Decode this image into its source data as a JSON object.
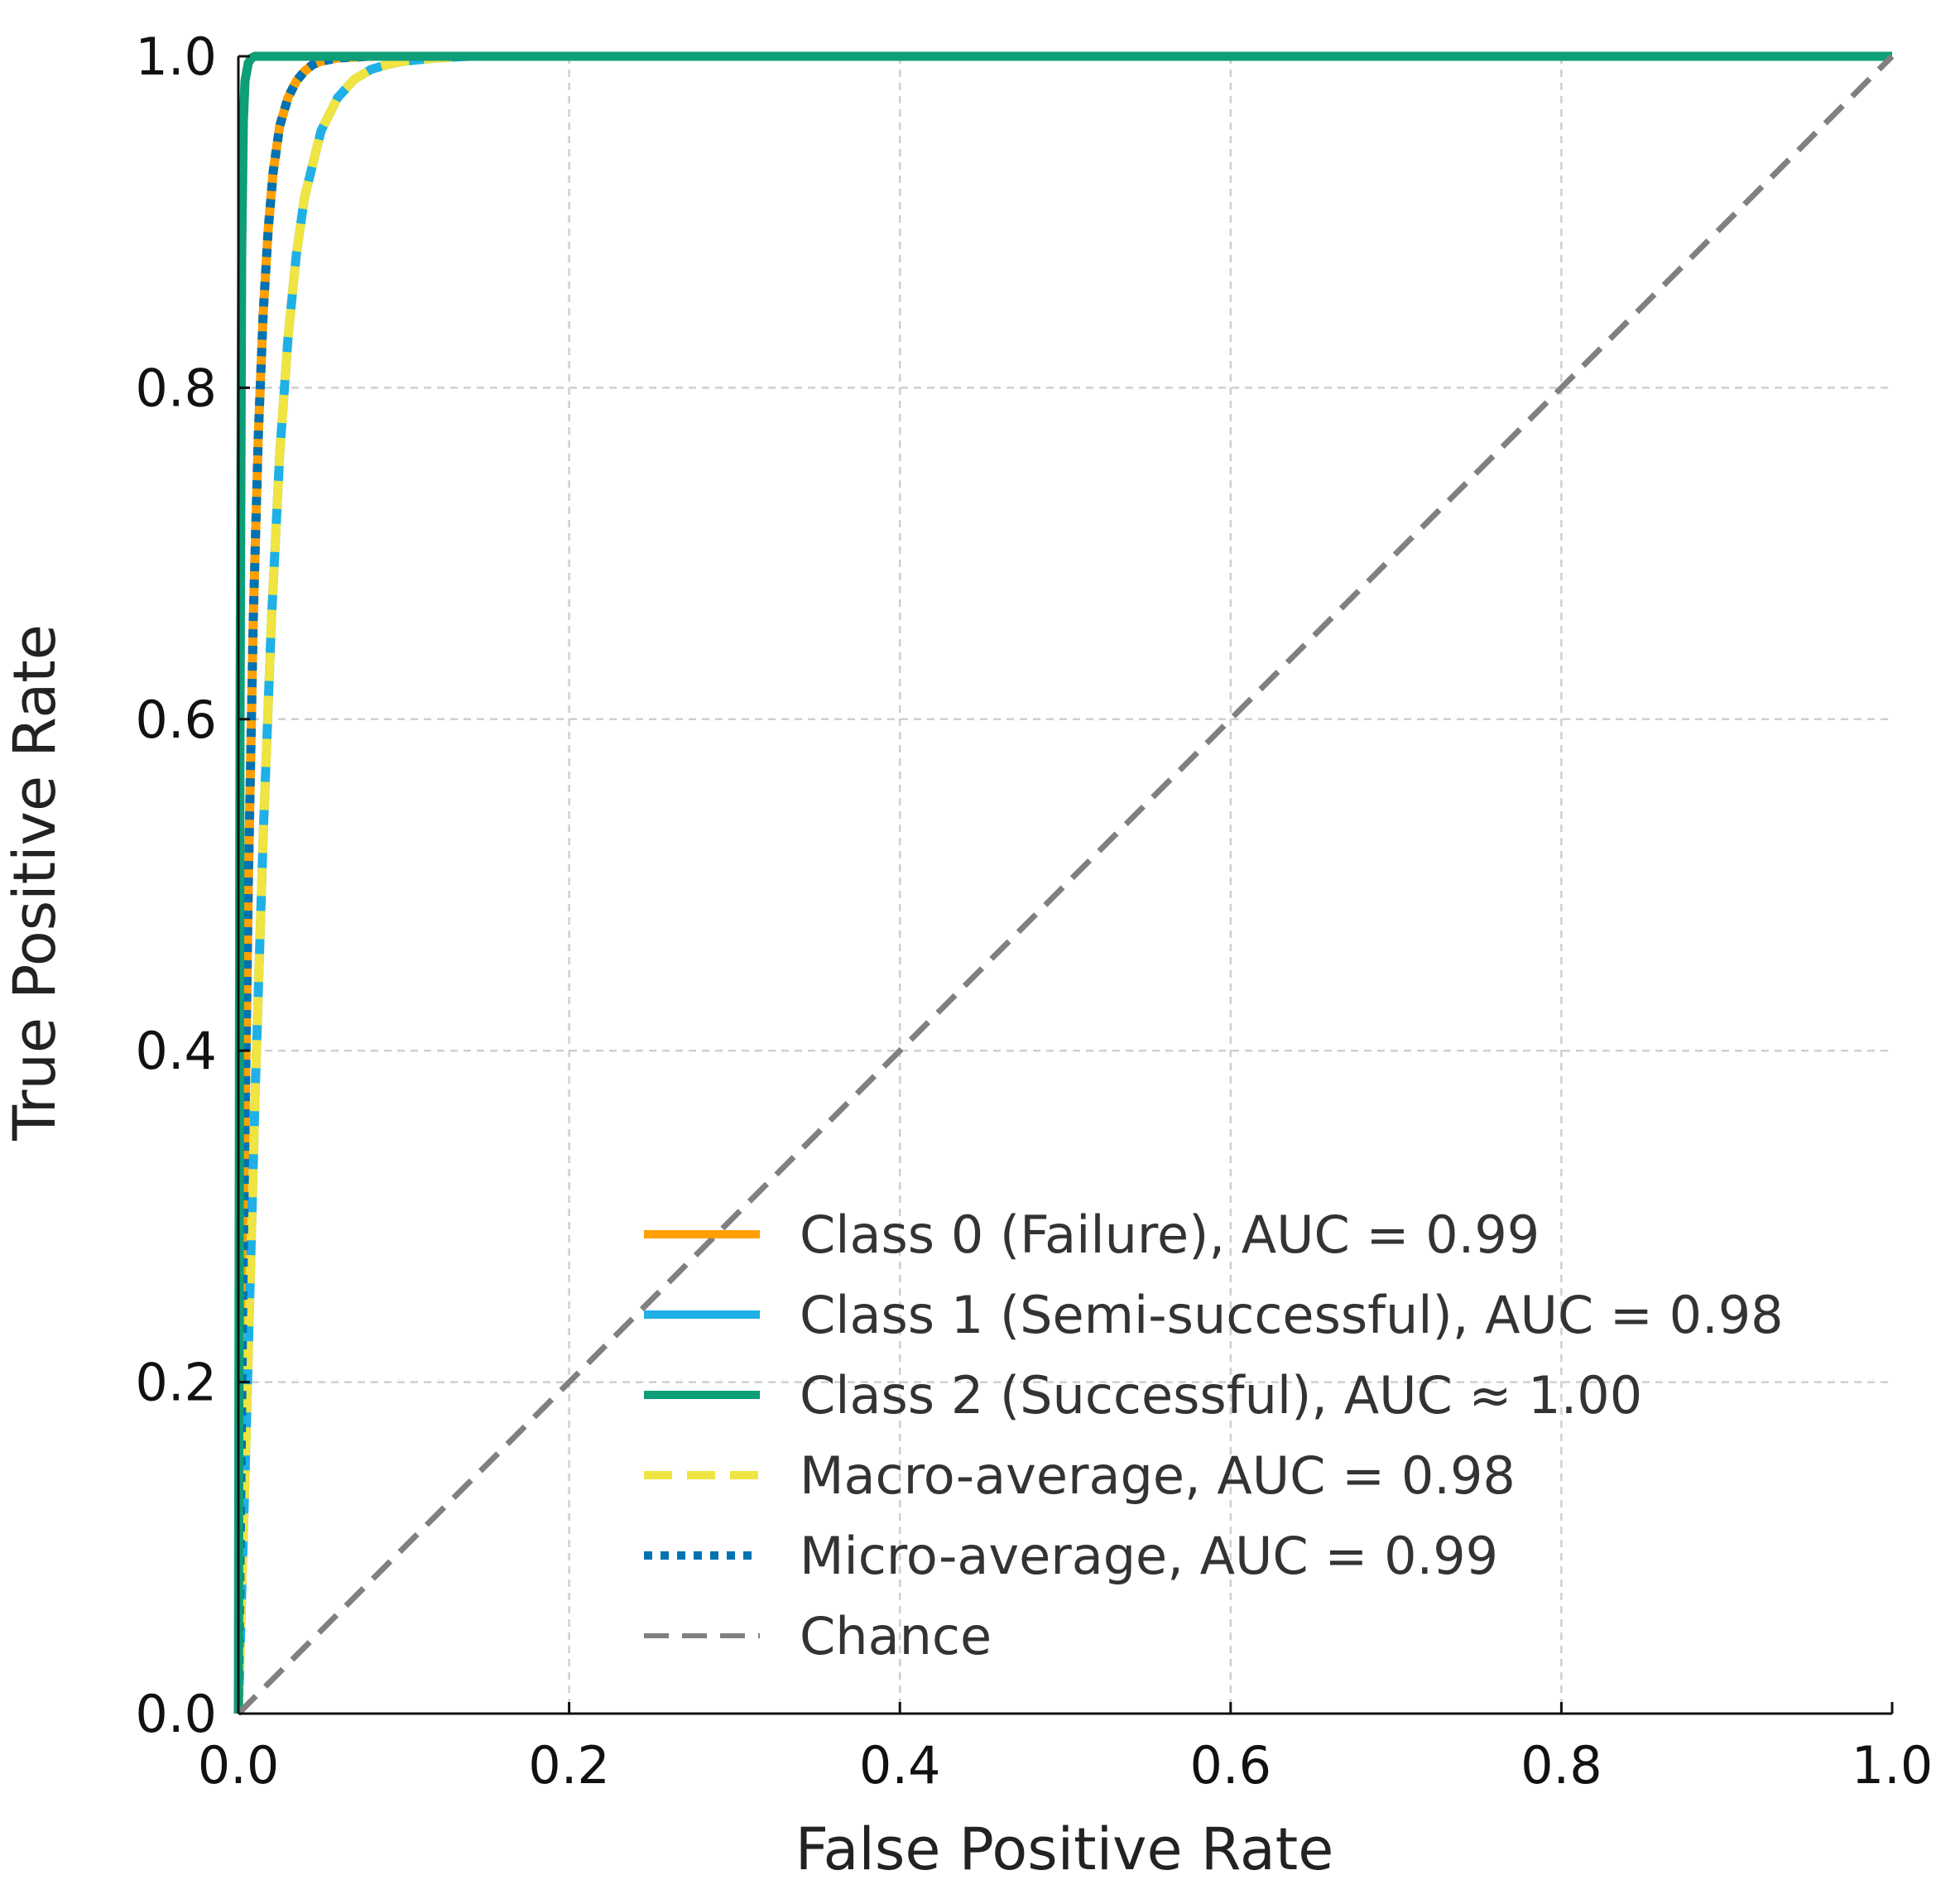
{
  "chart_data": {
    "type": "line",
    "title": "",
    "xlabel": "False Positive Rate",
    "ylabel": "True Positive Rate",
    "xlim": [
      0.0,
      1.0
    ],
    "ylim": [
      0.0,
      1.0
    ],
    "grid": true,
    "x_ticks": [
      "0.0",
      "0.2",
      "0.4",
      "0.6",
      "0.8",
      "1.0"
    ],
    "y_ticks": [
      "0.0",
      "0.2",
      "0.4",
      "0.6",
      "0.8",
      "1.0"
    ],
    "x_tick_values": [
      0.0,
      0.2,
      0.4,
      0.6,
      0.8,
      1.0
    ],
    "y_tick_values": [
      0.0,
      0.2,
      0.4,
      0.6,
      0.8,
      1.0
    ],
    "legend_position": "lower-right",
    "series": [
      {
        "name": "Class 0 (Failure), AUC = 0.99",
        "color": "#FF9F00",
        "style": "solid",
        "x": [
          0.0,
          0.003,
          0.006,
          0.009,
          0.012,
          0.015,
          0.018,
          0.021,
          0.025,
          0.03,
          0.035,
          0.04,
          0.045,
          0.05,
          0.06,
          0.08,
          0.1,
          0.15,
          0.2,
          0.4,
          0.6,
          0.8,
          1.0
        ],
        "y": [
          0.0,
          0.28,
          0.5,
          0.66,
          0.77,
          0.845,
          0.895,
          0.93,
          0.958,
          0.975,
          0.985,
          0.991,
          0.995,
          0.997,
          0.999,
          1.0,
          1.0,
          1.0,
          1.0,
          1.0,
          1.0,
          1.0,
          1.0
        ]
      },
      {
        "name": "Class 1 (Semi-successful), AUC = 0.98",
        "color": "#1EB0E6",
        "style": "solid",
        "x": [
          0.0,
          0.005,
          0.01,
          0.015,
          0.02,
          0.025,
          0.03,
          0.035,
          0.04,
          0.05,
          0.06,
          0.07,
          0.08,
          0.09,
          0.1,
          0.12,
          0.14,
          0.2,
          0.4,
          0.6,
          0.8,
          1.0
        ],
        "y": [
          0.0,
          0.18,
          0.37,
          0.53,
          0.66,
          0.76,
          0.83,
          0.88,
          0.915,
          0.955,
          0.975,
          0.986,
          0.992,
          0.995,
          0.997,
          0.999,
          1.0,
          1.0,
          1.0,
          1.0,
          1.0,
          1.0
        ]
      },
      {
        "name": "Class 2 (Successful), AUC ≈ 1.00",
        "color": "#0E9E78",
        "style": "solid",
        "x": [
          0.0,
          0.001,
          0.002,
          0.003,
          0.004,
          0.006,
          0.008,
          0.01,
          0.015,
          0.2,
          0.4,
          0.6,
          0.8,
          1.0
        ],
        "y": [
          0.0,
          0.6,
          0.88,
          0.96,
          0.985,
          0.996,
          0.999,
          1.0,
          1.0,
          1.0,
          1.0,
          1.0,
          1.0,
          1.0
        ]
      },
      {
        "name": "Macro-average, AUC = 0.98",
        "color": "#F0E442",
        "style": "dashed",
        "x": [
          0.0,
          0.005,
          0.01,
          0.015,
          0.02,
          0.025,
          0.03,
          0.035,
          0.04,
          0.05,
          0.06,
          0.07,
          0.08,
          0.09,
          0.1,
          0.12,
          0.14,
          0.2,
          0.4,
          0.6,
          0.8,
          1.0
        ],
        "y": [
          0.0,
          0.18,
          0.37,
          0.53,
          0.66,
          0.76,
          0.83,
          0.88,
          0.915,
          0.955,
          0.975,
          0.986,
          0.992,
          0.995,
          0.997,
          0.999,
          1.0,
          1.0,
          1.0,
          1.0,
          1.0,
          1.0
        ]
      },
      {
        "name": "Micro-average, AUC = 0.99",
        "color": "#0072B2",
        "style": "dotted",
        "x": [
          0.0,
          0.003,
          0.006,
          0.009,
          0.012,
          0.015,
          0.018,
          0.021,
          0.025,
          0.03,
          0.035,
          0.04,
          0.045,
          0.05,
          0.06,
          0.08,
          0.1,
          0.15,
          0.2,
          0.4,
          0.6,
          0.8,
          1.0
        ],
        "y": [
          0.0,
          0.28,
          0.5,
          0.66,
          0.77,
          0.845,
          0.895,
          0.93,
          0.958,
          0.975,
          0.985,
          0.991,
          0.995,
          0.997,
          0.999,
          1.0,
          1.0,
          1.0,
          1.0,
          1.0,
          1.0,
          1.0,
          1.0
        ]
      },
      {
        "name": "Chance",
        "color": "#808080",
        "style": "dashed",
        "x": [
          0.0,
          1.0
        ],
        "y": [
          0.0,
          1.0
        ]
      }
    ]
  }
}
